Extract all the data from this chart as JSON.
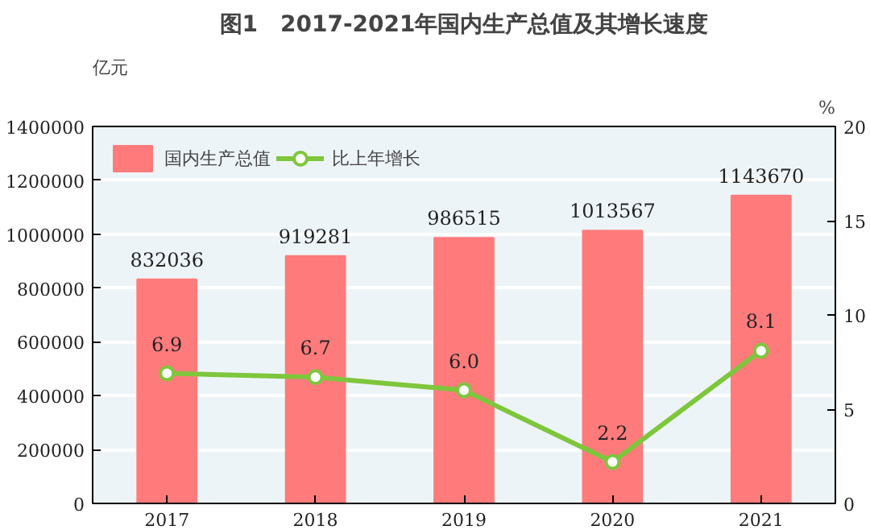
{
  "chart_data": {
    "type": "bar",
    "title": "图1　2017-2021年国内生产总值及其增长速度",
    "ylabel": "亿元",
    "y2label": "%",
    "categories": [
      "2017",
      "2018",
      "2019",
      "2020",
      "2021"
    ],
    "series": [
      {
        "name": "国内生产总值",
        "color": "#ff7b7b",
        "values": [
          832036,
          919281,
          986515,
          1013567,
          1143670
        ]
      },
      {
        "name": "比上年增长",
        "type": "line",
        "axis": "y2",
        "color": "#7ec63c",
        "values": [
          6.9,
          6.7,
          6.0,
          2.2,
          8.1
        ],
        "value_labels": [
          "6.9",
          "6.7",
          "6.0",
          "2.2",
          "8.1"
        ]
      }
    ],
    "ylim": [
      0,
      1400000
    ],
    "yticks": [
      0,
      200000,
      400000,
      600000,
      800000,
      1000000,
      1200000,
      1400000
    ],
    "y2lim": [
      0,
      20
    ],
    "y2ticks": [
      0,
      5,
      10,
      15,
      20
    ],
    "data_labels": true,
    "grid": "y",
    "legend": "top left",
    "marker": "circle",
    "line_style": "solid"
  }
}
